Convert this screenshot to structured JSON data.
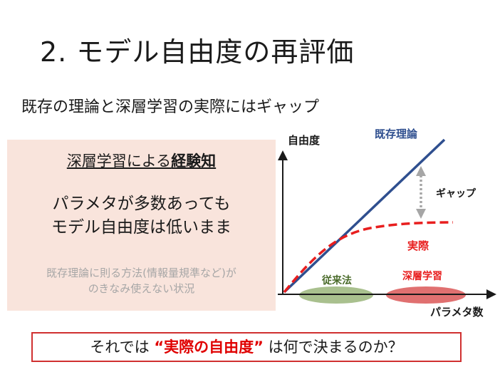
{
  "slide": {
    "title": "2. モデル自由度の再評価",
    "subtitle": "既存の理論と深層学習の実際にはギャップ"
  },
  "panel": {
    "heading_part1": "深層学習による",
    "heading_bold": "経験知",
    "main_line1": "パラメタが多数あっても",
    "main_line2": "モデル自由度は低いまま",
    "note_line1": "既存理論に則る方法(情報量規準など)が",
    "note_line2": "のきなみ使えない状況"
  },
  "diagram": {
    "y_axis_label": "自由度",
    "x_axis_label": "パラメタ数",
    "theory_label": "既存理論",
    "actual_label": "実際",
    "gap_label": "ギャップ",
    "region_conventional": "従来法",
    "region_deep": "深層学習",
    "colors": {
      "theory": "#2f4f8f",
      "actual": "#e81e1e",
      "gap_arrow": "#a6a6a6",
      "conventional": "#a9c08e",
      "deep": "#e07070"
    }
  },
  "question": {
    "prefix": "それでは ",
    "open_quote": "“",
    "highlight": "実際の自由度",
    "close_quote": "”",
    "suffix": " は何で決まるのか？"
  }
}
